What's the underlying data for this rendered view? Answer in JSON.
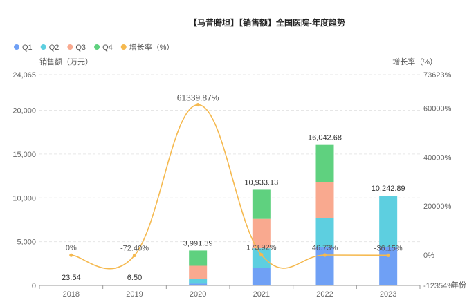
{
  "chart_data": {
    "type": "bar",
    "title": "【马昔腾坦】【销售额】全国医院-年度趋势",
    "categories": [
      "2018",
      "2019",
      "2020",
      "2021",
      "2022",
      "2023"
    ],
    "series": [
      {
        "name": "Q1",
        "type": "bar",
        "color": "#6fa0f5",
        "values": [
          5.9,
          1.6,
          200,
          2050,
          4400,
          4350
        ]
      },
      {
        "name": "Q2",
        "type": "bar",
        "color": "#5dcfe0",
        "values": [
          5.9,
          1.6,
          550,
          2200,
          3300,
          5892.89
        ]
      },
      {
        "name": "Q3",
        "type": "bar",
        "color": "#f9a98f",
        "values": [
          5.9,
          1.6,
          1500,
          3350,
          4100,
          0
        ]
      },
      {
        "name": "Q4",
        "type": "bar",
        "color": "#5fd17f",
        "values": [
          5.84,
          1.7,
          1741.39,
          3333.13,
          4242.68,
          0
        ]
      },
      {
        "name": "增长率（%）",
        "type": "line",
        "axis": "right",
        "color": "#f5b94f",
        "values": [
          0,
          -72.4,
          61339.87,
          173.92,
          46.73,
          -36.15
        ]
      }
    ],
    "totals": [
      23.54,
      6.5,
      3991.39,
      10933.13,
      16042.68,
      10242.89
    ],
    "total_labels": [
      "23.54",
      "6.50",
      "3,991.39",
      "10,933.13",
      "16,042.68",
      "10,242.89"
    ],
    "rate_labels": [
      "0%",
      "-72.40%",
      "61339.87%",
      "173.92%",
      "46.73%",
      "-36.15%"
    ],
    "ylabel": "销售额（万元）",
    "y2label": "增长率（%）",
    "xlabel": "年份",
    "ylim": [
      0,
      24065
    ],
    "y2lim": [
      -12354,
      73623
    ],
    "yticks": [
      0,
      5000,
      10000,
      15000,
      20000,
      24065
    ],
    "ytick_labels": [
      "0",
      "5,000",
      "10,000",
      "15,000",
      "20,000",
      "24,065"
    ],
    "y2ticks": [
      -12354,
      0,
      20000,
      40000,
      60000,
      73623
    ],
    "y2tick_labels": [
      "-12354%",
      "0%",
      "20000%",
      "40000%",
      "60000%",
      "73623%"
    ],
    "legend": "top-left",
    "grid": true
  }
}
